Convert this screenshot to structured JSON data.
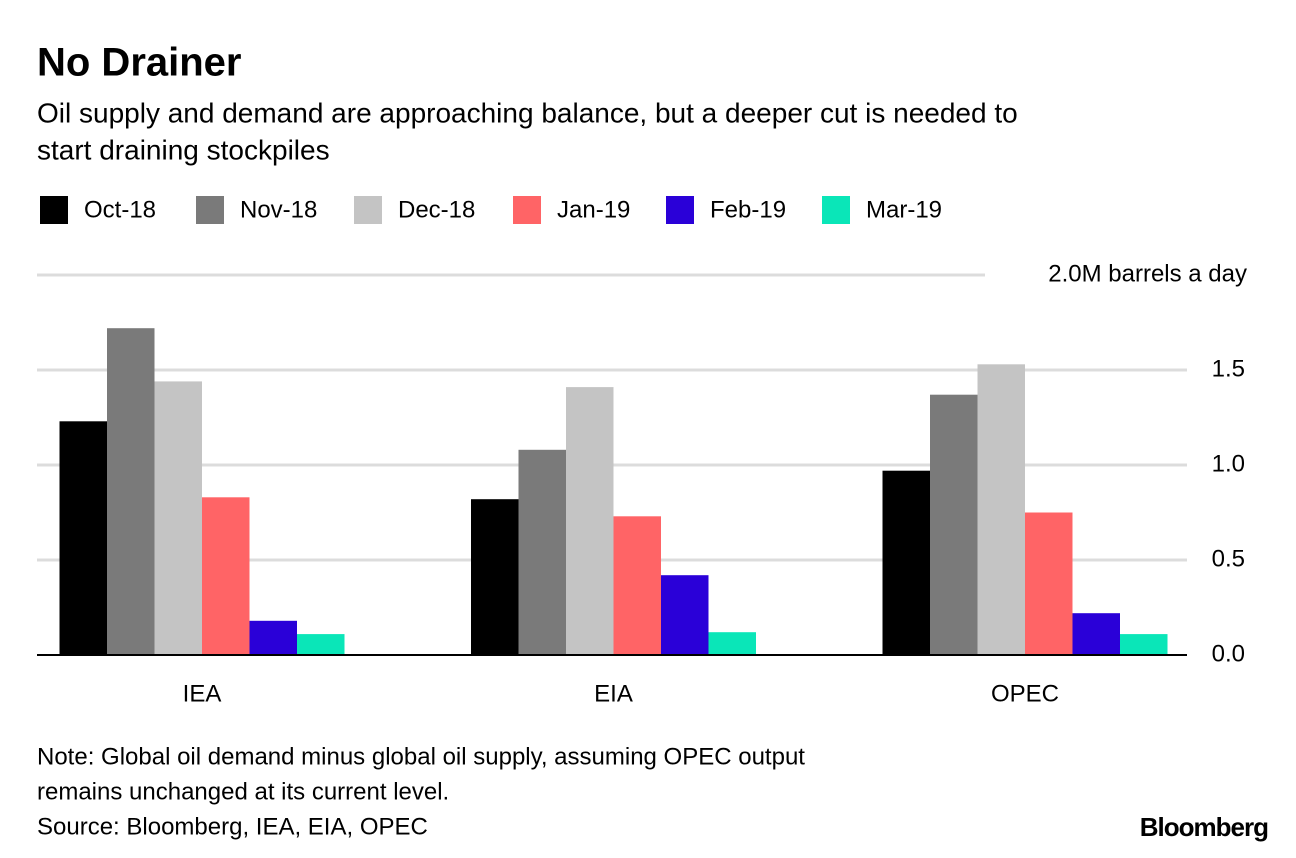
{
  "chart_data": {
    "type": "bar",
    "title": "No Drainer",
    "subtitle": [
      "Oil supply and demand are approaching balance, but a deeper cut is needed to",
      "start draining stockpiles"
    ],
    "categories": [
      "IEA",
      "EIA",
      "OPEC"
    ],
    "series": [
      {
        "name": "Oct-18",
        "color": "#000000",
        "values": [
          1.23,
          0.82,
          0.97
        ]
      },
      {
        "name": "Nov-18",
        "color": "#7a7a7a",
        "values": [
          1.72,
          1.08,
          1.37
        ]
      },
      {
        "name": "Dec-18",
        "color": "#c4c4c4",
        "values": [
          1.44,
          1.41,
          1.53
        ]
      },
      {
        "name": "Jan-19",
        "color": "#ff6466",
        "values": [
          0.83,
          0.73,
          0.75
        ]
      },
      {
        "name": "Feb-19",
        "color": "#2a00d8",
        "values": [
          0.18,
          0.42,
          0.22
        ]
      },
      {
        "name": "Mar-19",
        "color": "#0ae6b8",
        "values": [
          0.11,
          0.12,
          0.11
        ]
      }
    ],
    "ylim": [
      0,
      2
    ],
    "yticks": [
      {
        "value": 0,
        "label": "0.0"
      },
      0.5,
      {
        "value": 1,
        "label": "1.0"
      },
      1.5,
      {
        "value": 2,
        "label": "2.0M barrels a day"
      }
    ],
    "grid": true,
    "notes": [
      "Note: Global oil demand minus global oil supply, assuming OPEC output",
      "remains unchanged at its current level.",
      "Source: Bloomberg, IEA, EIA, OPEC"
    ],
    "brand": "Bloomberg"
  }
}
